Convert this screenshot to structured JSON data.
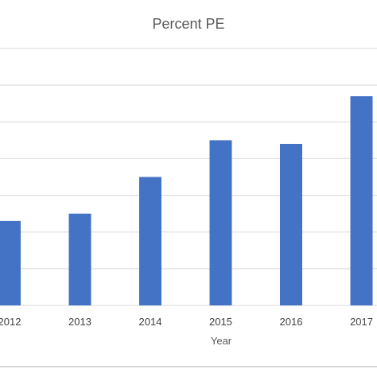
{
  "chart_data": {
    "type": "bar",
    "title": "Percent PE",
    "xlabel": "Year",
    "ylabel": "",
    "categories": [
      "2012",
      "2013",
      "2014",
      "2015",
      "2016",
      "2017"
    ],
    "values": [
      2.3,
      2.5,
      3.5,
      4.5,
      4.4,
      5.7
    ],
    "ylim": [
      0,
      7
    ],
    "grid": true,
    "legend": "none",
    "bar_color": "#4472c4",
    "grid_color": "#d9d9d9"
  }
}
